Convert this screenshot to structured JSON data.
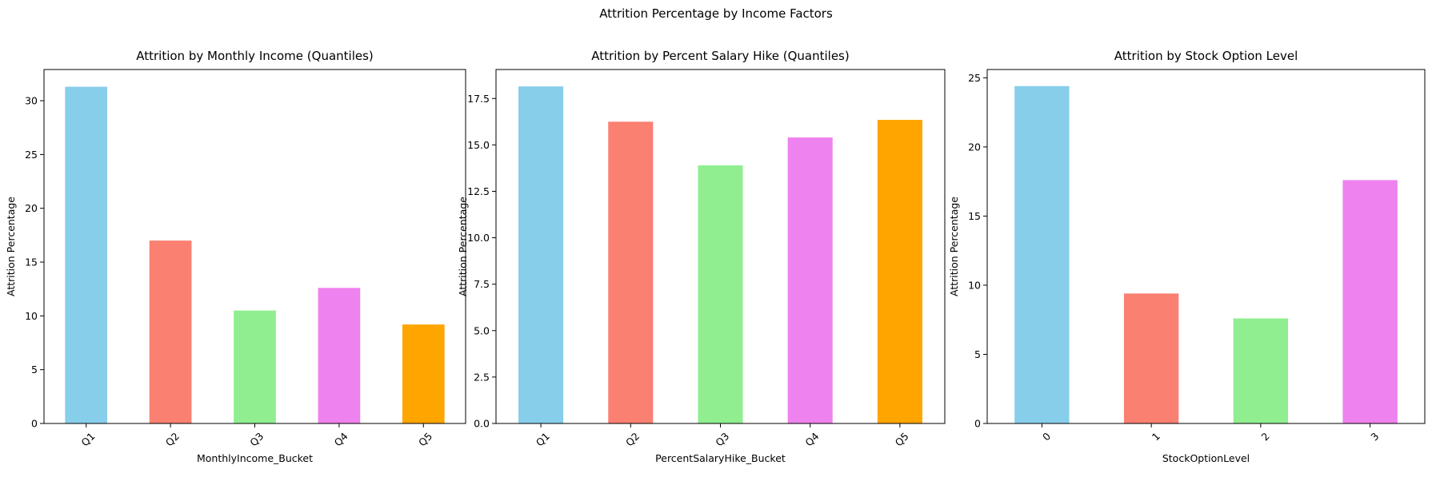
{
  "suptitle": "Attrition Percentage by Income Factors",
  "colors": [
    "#87ceeb",
    "#fa8072",
    "#90ee90",
    "#ee82ee",
    "#ffa500"
  ],
  "chart_data": [
    {
      "type": "bar",
      "title": "Attrition by Monthly Income (Quantiles)",
      "xlabel": "MonthlyIncome_Bucket",
      "ylabel": "Attrition Percentage",
      "categories": [
        "Q1",
        "Q2",
        "Q3",
        "Q4",
        "Q5"
      ],
      "values": [
        31.3,
        17.0,
        10.5,
        12.6,
        9.2
      ],
      "ylim": [
        0,
        32.9
      ],
      "yticks": [
        0,
        5,
        10,
        15,
        20,
        25,
        30
      ],
      "ytick_labels": [
        "0",
        "5",
        "10",
        "15",
        "20",
        "25",
        "30"
      ],
      "grid": false,
      "legend": false
    },
    {
      "type": "bar",
      "title": "Attrition by Percent Salary Hike (Quantiles)",
      "xlabel": "PercentSalaryHike_Bucket",
      "ylabel": "Attrition Percentage",
      "categories": [
        "Q1",
        "Q2",
        "Q3",
        "Q4",
        "Q5"
      ],
      "values": [
        18.15,
        16.25,
        13.9,
        15.4,
        16.35
      ],
      "ylim": [
        0,
        19.06
      ],
      "yticks": [
        0,
        2.5,
        5,
        7.5,
        10,
        12.5,
        15,
        17.5
      ],
      "ytick_labels": [
        "0.0",
        "2.5",
        "5.0",
        "7.5",
        "10.0",
        "12.5",
        "15.0",
        "17.5"
      ],
      "grid": false,
      "legend": false
    },
    {
      "type": "bar",
      "title": "Attrition by Stock Option Level",
      "xlabel": "StockOptionLevel",
      "ylabel": "Attrition Percentage",
      "categories": [
        "0",
        "1",
        "2",
        "3"
      ],
      "values": [
        24.4,
        9.4,
        7.6,
        17.6
      ],
      "ylim": [
        0,
        25.6
      ],
      "yticks": [
        0,
        5,
        10,
        15,
        20,
        25
      ],
      "ytick_labels": [
        "0",
        "5",
        "10",
        "15",
        "20",
        "25"
      ],
      "grid": false,
      "legend": false
    }
  ]
}
